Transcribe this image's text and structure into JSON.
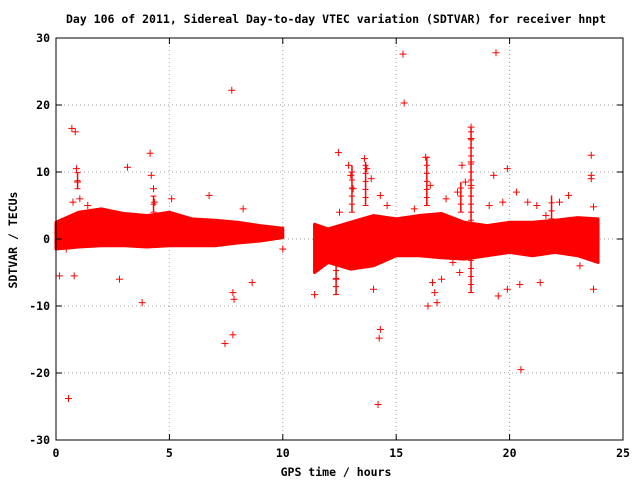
{
  "chart_data": {
    "type": "scatter",
    "title": "Day 106 of 2011, Sidereal Day-to-day VTEC variation (SDTVAR) for receiver hnpt",
    "xlabel": "GPS time / hours",
    "ylabel": "SDTVAR / TECUs",
    "xlim": [
      0,
      25
    ],
    "ylim": [
      -30,
      30
    ],
    "xticks": [
      0,
      5,
      10,
      15,
      20,
      25
    ],
    "yticks": [
      -30,
      -20,
      -10,
      0,
      10,
      20,
      30
    ],
    "xtick_labels": [
      "0",
      "5",
      "10",
      "15",
      "20",
      "25"
    ],
    "ytick_labels": [
      "-30",
      "-20",
      "-10",
      "0",
      "10",
      "20",
      "30"
    ],
    "grid": true,
    "marker": "+",
    "color": "#ff0000",
    "band_segments": [
      {
        "x": [
          0.0,
          1.0,
          2.0,
          3.0,
          4.0,
          5.0,
          6.0,
          7.0,
          8.0,
          9.0,
          10.0
        ],
        "y_low": [
          -1.5,
          -1.2,
          -1.0,
          -1.0,
          -1.2,
          -1.0,
          -1.0,
          -1.0,
          -0.6,
          -0.3,
          0.2
        ],
        "y_high": [
          2.5,
          4.0,
          4.5,
          3.8,
          3.5,
          4.0,
          3.0,
          2.8,
          2.5,
          2.0,
          1.6
        ]
      },
      {
        "x": [
          11.4,
          12.0,
          13.0,
          14.0,
          15.0,
          16.0,
          17.0,
          18.0,
          19.0,
          20.0,
          21.0,
          22.0,
          23.0,
          23.9
        ],
        "y_low": [
          -5.0,
          -3.5,
          -4.5,
          -4.0,
          -2.5,
          -2.5,
          -2.8,
          -3.0,
          -2.5,
          -2.0,
          -2.5,
          -2.0,
          -2.5,
          -3.5
        ],
        "y_high": [
          2.2,
          1.5,
          2.5,
          3.5,
          3.0,
          3.5,
          3.8,
          2.5,
          2.0,
          2.5,
          2.5,
          2.8,
          3.2,
          3.0
        ]
      }
    ],
    "outliers": [
      {
        "x": 0.15,
        "y": -5.5
      },
      {
        "x": 0.45,
        "y": -1.5
      },
      {
        "x": 0.55,
        "y": -23.8
      },
      {
        "x": 0.7,
        "y": 16.5
      },
      {
        "x": 0.85,
        "y": 16.0
      },
      {
        "x": 0.75,
        "y": 5.5
      },
      {
        "x": 0.8,
        "y": -5.5
      },
      {
        "x": 0.9,
        "y": 10.5
      },
      {
        "x": 0.95,
        "y": 8.5
      },
      {
        "x": 1.05,
        "y": 6.0
      },
      {
        "x": 1.4,
        "y": 5.0
      },
      {
        "x": 2.8,
        "y": -6.0
      },
      {
        "x": 3.15,
        "y": 10.7
      },
      {
        "x": 3.8,
        "y": -9.5
      },
      {
        "x": 4.15,
        "y": 12.8
      },
      {
        "x": 4.2,
        "y": 9.5
      },
      {
        "x": 4.3,
        "y": 7.5
      },
      {
        "x": 4.35,
        "y": 5.5
      },
      {
        "x": 5.1,
        "y": 6.0
      },
      {
        "x": 6.75,
        "y": 6.5
      },
      {
        "x": 7.45,
        "y": -15.6
      },
      {
        "x": 7.75,
        "y": 22.2
      },
      {
        "x": 7.8,
        "y": -8.0
      },
      {
        "x": 7.85,
        "y": -9.0
      },
      {
        "x": 7.8,
        "y": -14.3
      },
      {
        "x": 8.25,
        "y": 4.5
      },
      {
        "x": 8.65,
        "y": -6.5
      },
      {
        "x": 10.0,
        "y": -1.5
      },
      {
        "x": 11.4,
        "y": -8.3
      },
      {
        "x": 12.45,
        "y": 12.9
      },
      {
        "x": 12.5,
        "y": 4.0
      },
      {
        "x": 12.35,
        "y": -6.0
      },
      {
        "x": 12.9,
        "y": 11.0
      },
      {
        "x": 13.0,
        "y": 9.5
      },
      {
        "x": 13.1,
        "y": 7.5
      },
      {
        "x": 13.6,
        "y": 12.0
      },
      {
        "x": 13.7,
        "y": 10.5
      },
      {
        "x": 13.9,
        "y": 9.0
      },
      {
        "x": 14.0,
        "y": -7.5
      },
      {
        "x": 14.2,
        "y": -3.0
      },
      {
        "x": 14.3,
        "y": -13.5
      },
      {
        "x": 14.25,
        "y": -14.8
      },
      {
        "x": 14.2,
        "y": -24.7
      },
      {
        "x": 14.3,
        "y": 6.5
      },
      {
        "x": 14.6,
        "y": 5.0
      },
      {
        "x": 15.3,
        "y": 27.6
      },
      {
        "x": 15.35,
        "y": 20.3
      },
      {
        "x": 15.8,
        "y": 4.5
      },
      {
        "x": 16.3,
        "y": 12.2
      },
      {
        "x": 16.5,
        "y": 8.0
      },
      {
        "x": 16.6,
        "y": -6.5
      },
      {
        "x": 16.7,
        "y": -8.0
      },
      {
        "x": 16.4,
        "y": -10.0
      },
      {
        "x": 16.8,
        "y": -9.5
      },
      {
        "x": 17.0,
        "y": -6.0
      },
      {
        "x": 17.2,
        "y": 6.0
      },
      {
        "x": 17.5,
        "y": -3.5
      },
      {
        "x": 17.7,
        "y": 7.0
      },
      {
        "x": 17.8,
        "y": -5.0
      },
      {
        "x": 17.9,
        "y": 11.0
      },
      {
        "x": 18.05,
        "y": 8.5
      },
      {
        "x": 18.3,
        "y": 16.7
      },
      {
        "x": 18.3,
        "y": 15.0
      },
      {
        "x": 18.3,
        "y": 11.5
      },
      {
        "x": 18.3,
        "y": 8.0
      },
      {
        "x": 19.1,
        "y": 5.0
      },
      {
        "x": 19.3,
        "y": 9.5
      },
      {
        "x": 19.4,
        "y": 27.8
      },
      {
        "x": 19.5,
        "y": -8.5
      },
      {
        "x": 19.7,
        "y": 5.5
      },
      {
        "x": 19.9,
        "y": -7.5
      },
      {
        "x": 19.9,
        "y": 10.5
      },
      {
        "x": 20.3,
        "y": 7.0
      },
      {
        "x": 20.5,
        "y": -19.5
      },
      {
        "x": 20.45,
        "y": -6.8
      },
      {
        "x": 20.8,
        "y": 5.5
      },
      {
        "x": 21.2,
        "y": 5.0
      },
      {
        "x": 21.35,
        "y": -6.5
      },
      {
        "x": 21.6,
        "y": 3.5
      },
      {
        "x": 22.2,
        "y": 5.5
      },
      {
        "x": 22.6,
        "y": 6.5
      },
      {
        "x": 23.1,
        "y": -4.0
      },
      {
        "x": 23.6,
        "y": 12.5
      },
      {
        "x": 23.6,
        "y": 9.5
      },
      {
        "x": 23.6,
        "y": 9.0
      },
      {
        "x": 23.7,
        "y": -7.5
      },
      {
        "x": 23.7,
        "y": 4.8
      }
    ],
    "spikes": [
      {
        "x": 0.95,
        "y_low": 7.5,
        "y_high": 10.0
      },
      {
        "x": 4.3,
        "y_low": 4.0,
        "y_high": 6.5
      },
      {
        "x": 12.35,
        "y_low": -8.3,
        "y_high": -3.5
      },
      {
        "x": 13.05,
        "y_low": 4.0,
        "y_high": 11.0
      },
      {
        "x": 13.65,
        "y_low": 5.0,
        "y_high": 11.5
      },
      {
        "x": 16.35,
        "y_low": 5.0,
        "y_high": 12.2
      },
      {
        "x": 18.3,
        "y_low": -8.0,
        "y_high": 16.7
      },
      {
        "x": 17.85,
        "y_low": 4.0,
        "y_high": 8.5
      },
      {
        "x": 21.85,
        "y_low": 3.0,
        "y_high": 6.5
      }
    ]
  }
}
